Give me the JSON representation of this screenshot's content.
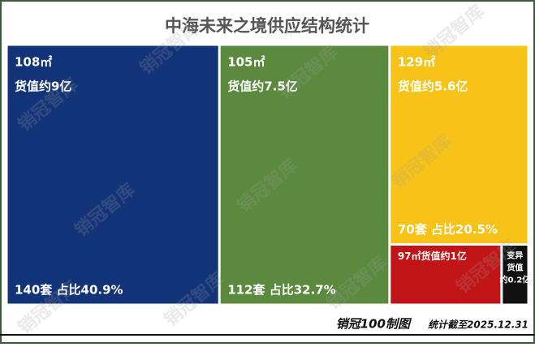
{
  "chart_data": {
    "type": "treemap",
    "title": "中海未来之境供应结构统计",
    "items": [
      {
        "labels": [
          "108㎡",
          "货值约9亿"
        ],
        "value": 40.9,
        "value_label": "140套 占比40.9%",
        "color": "#133378"
      },
      {
        "labels": [
          "105㎡",
          "货值约7.5亿"
        ],
        "value": 32.7,
        "value_label": "112套 占比32.7%",
        "color": "#5b8a3f"
      },
      {
        "labels": [
          "129㎡",
          "货值约5.6亿"
        ],
        "value": 20.5,
        "value_label": "70套 占比20.5%",
        "color": "#f7c316"
      },
      {
        "labels": [
          "97㎡货值约1亿"
        ],
        "value": 5.0,
        "color": "#c11417"
      },
      {
        "labels": [
          "变异",
          "货值",
          "约0.2亿"
        ],
        "value": 1.2,
        "color": "#111111"
      }
    ],
    "watermark": "销冠智库",
    "footer": {
      "source": "销冠100制图",
      "date": "统计截至2025.12.31"
    }
  }
}
